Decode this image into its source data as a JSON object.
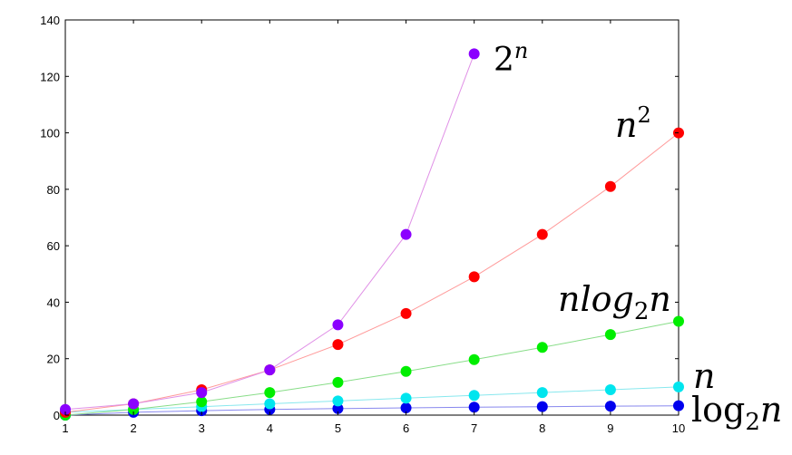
{
  "chart_data": {
    "type": "scatter",
    "x": [
      1,
      2,
      3,
      4,
      5,
      6,
      7,
      8,
      9,
      10
    ],
    "xlim": [
      1,
      10
    ],
    "ylim": [
      0,
      140
    ],
    "xticks": [
      1,
      2,
      3,
      4,
      5,
      6,
      7,
      8,
      9,
      10
    ],
    "yticks": [
      0,
      20,
      40,
      60,
      80,
      100,
      120,
      140
    ],
    "grid": false,
    "legend": "none",
    "series": [
      {
        "name": "2^n",
        "label": {
          "base": "2",
          "sup": "n"
        },
        "color": "#8b00ff",
        "line_color": "#e090e6",
        "x": [
          1,
          2,
          3,
          4,
          5,
          6,
          7
        ],
        "values": [
          2,
          4,
          8,
          16,
          32,
          64,
          128
        ]
      },
      {
        "name": "n^2",
        "label": {
          "base": "n",
          "sup": "2"
        },
        "color": "#ff0000",
        "line_color": "#ff9a9a",
        "x": [
          1,
          2,
          3,
          4,
          5,
          6,
          7,
          8,
          9,
          10
        ],
        "values": [
          1,
          4,
          9,
          16,
          25,
          36,
          49,
          64,
          81,
          100
        ]
      },
      {
        "name": "nlog2n",
        "label": {
          "pre": "nlog",
          "sub": "2",
          "post": "n"
        },
        "color": "#00ee00",
        "line_color": "#88dd88",
        "x": [
          1,
          2,
          3,
          4,
          5,
          6,
          7,
          8,
          9,
          10
        ],
        "values": [
          0,
          2,
          4.75,
          8,
          11.6,
          15.5,
          19.65,
          24,
          28.53,
          33.22
        ]
      },
      {
        "name": "n",
        "label": {
          "base": "n"
        },
        "color": "#00e5ee",
        "line_color": "#88e8ee",
        "x": [
          1,
          2,
          3,
          4,
          5,
          6,
          7,
          8,
          9,
          10
        ],
        "values": [
          1,
          2,
          3,
          4,
          5,
          6,
          7,
          8,
          9,
          10
        ]
      },
      {
        "name": "log2n",
        "label": {
          "pre": "log",
          "sub": "2",
          "post": "n"
        },
        "color": "#0000ee",
        "line_color": "#8888ee",
        "x": [
          1,
          2,
          3,
          4,
          5,
          6,
          7,
          8,
          9,
          10
        ],
        "values": [
          0,
          1,
          1.58,
          2,
          2.32,
          2.58,
          2.81,
          3,
          3.17,
          3.32
        ]
      }
    ]
  }
}
